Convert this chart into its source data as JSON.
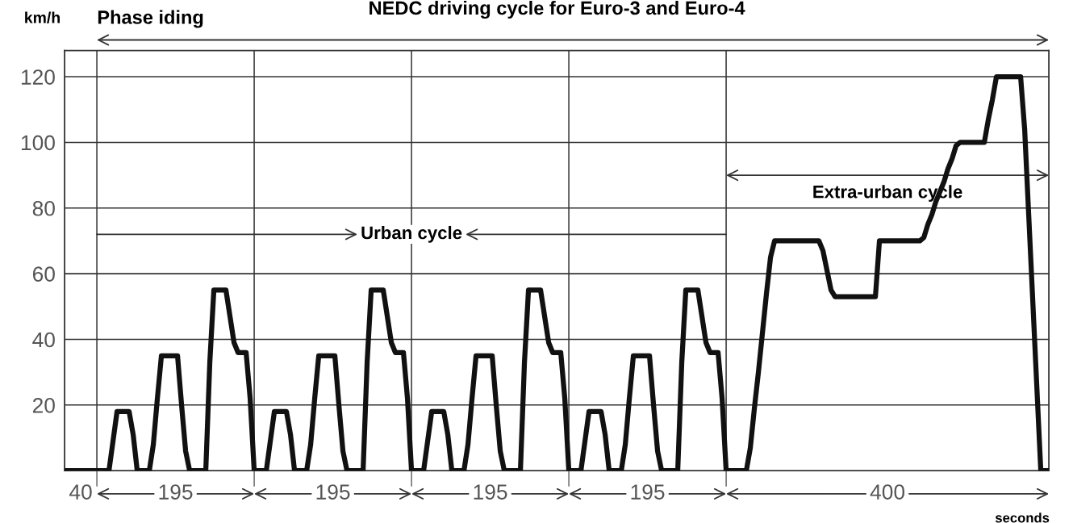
{
  "chart_data": {
    "type": "line",
    "title": "NEDC driving cycle for Euro-3 and Euro-4",
    "xlabel": "seconds",
    "ylabel": "km/h",
    "annotations": [
      "Phase iding",
      "Urban cycle",
      "Extra-urban cycle",
      "40",
      "195",
      "195",
      "195",
      "195",
      "400"
    ],
    "categories": [
      null,
      null,
      null,
      null,
      null,
      null,
      null,
      null,
      null,
      null,
      null,
      null,
      null,
      null,
      null,
      null,
      null,
      null,
      null,
      null,
      null,
      null,
      null,
      null,
      null,
      null,
      null,
      null,
      null,
      null,
      null,
      null,
      null,
      null,
      null,
      null,
      null,
      null,
      null,
      null,
      null,
      null,
      null,
      null,
      null,
      null,
      null,
      null,
      null,
      null,
      null,
      null,
      null,
      null,
      null,
      null,
      null,
      null,
      null,
      null,
      null,
      null,
      null,
      null,
      null,
      null,
      null,
      null,
      null,
      null,
      null,
      null,
      null,
      null,
      null,
      null,
      null,
      null,
      null,
      null,
      null,
      null,
      null,
      null,
      null,
      null,
      null,
      null,
      null,
      null,
      null,
      null,
      null,
      null,
      null,
      null,
      null,
      null,
      null,
      null,
      null,
      null,
      null,
      null,
      null,
      null,
      null,
      null,
      null,
      null,
      null,
      null,
      null,
      null,
      null,
      null,
      null,
      null,
      null,
      null,
      null,
      null,
      null,
      null,
      null,
      null,
      null,
      null,
      null,
      null,
      null,
      null,
      null,
      null,
      null,
      null,
      null,
      null,
      null,
      null,
      null,
      null,
      null,
      null,
      null,
      null,
      null,
      null,
      null,
      null,
      null,
      null,
      null,
      null,
      null,
      null,
      null,
      null,
      null,
      null,
      null,
      null,
      null,
      null,
      null,
      null,
      null,
      null,
      null,
      null,
      null,
      null,
      null,
      null,
      null,
      null,
      null,
      null,
      null,
      null,
      null,
      null,
      null,
      null,
      null,
      null,
      null,
      null,
      null,
      null,
      null,
      null,
      null,
      null,
      null,
      null,
      null,
      null,
      null,
      null,
      null,
      null,
      null,
      null,
      null,
      null,
      null,
      null,
      null,
      null,
      null,
      null,
      null,
      null,
      null,
      null,
      null,
      null,
      null,
      null,
      null,
      null,
      null,
      null,
      null,
      null,
      null,
      null,
      null,
      null,
      null,
      null,
      null,
      null,
      null,
      null,
      null,
      null,
      null,
      null,
      null,
      null,
      null,
      null,
      null
    ],
    "series": [
      {
        "color": "#111111",
        "values": [
          0,
          0,
          0,
          0,
          0,
          0,
          0,
          0,
          0,
          0,
          0,
          0,
          9,
          18,
          18,
          18,
          18,
          11,
          0,
          0,
          0,
          0,
          8,
          22,
          35,
          35,
          35,
          35,
          35,
          20,
          6,
          0,
          0,
          0,
          0,
          0,
          33,
          55,
          55,
          55,
          55,
          47,
          39,
          36,
          36,
          36,
          22,
          0,
          0,
          0,
          0,
          9,
          18,
          18,
          18,
          18,
          11,
          0,
          0,
          0,
          0,
          8,
          22,
          35,
          35,
          35,
          35,
          35,
          20,
          6,
          0,
          0,
          0,
          0,
          0,
          33,
          55,
          55,
          55,
          55,
          47,
          39,
          36,
          36,
          36,
          22,
          0,
          0,
          0,
          0,
          9,
          18,
          18,
          18,
          18,
          11,
          0,
          0,
          0,
          0,
          8,
          22,
          35,
          35,
          35,
          35,
          35,
          20,
          6,
          0,
          0,
          0,
          0,
          0,
          33,
          55,
          55,
          55,
          55,
          47,
          39,
          36,
          36,
          36,
          22,
          0,
          0,
          0,
          0,
          9,
          18,
          18,
          18,
          18,
          11,
          0,
          0,
          0,
          0,
          8,
          22,
          35,
          35,
          35,
          35,
          35,
          20,
          6,
          0,
          0,
          0,
          0,
          0,
          33,
          55,
          55,
          55,
          55,
          47,
          39,
          36,
          36,
          36,
          22,
          0,
          0,
          0,
          0,
          0,
          0,
          7,
          19,
          30,
          42,
          54,
          65,
          70,
          70,
          70,
          70,
          70,
          70,
          70,
          70,
          70,
          70,
          70,
          70,
          67,
          61,
          55,
          53,
          53,
          53,
          53,
          53,
          53,
          53,
          53,
          53,
          53,
          53,
          70,
          70,
          70,
          70,
          70,
          70,
          70,
          70,
          70,
          70,
          70,
          71,
          75,
          78,
          82,
          85,
          88,
          92,
          95,
          99,
          100,
          100,
          100,
          100,
          100,
          100,
          100,
          107,
          113,
          120,
          120,
          120,
          120,
          120,
          120,
          120,
          104,
          78,
          52,
          26,
          0,
          0,
          0
        ]
      }
    ],
    "ylim": [
      0,
      128
    ],
    "yticks": [
      20,
      40,
      60,
      80,
      100,
      120
    ],
    "grid": true,
    "marker": "none",
    "line_style": "solid"
  }
}
